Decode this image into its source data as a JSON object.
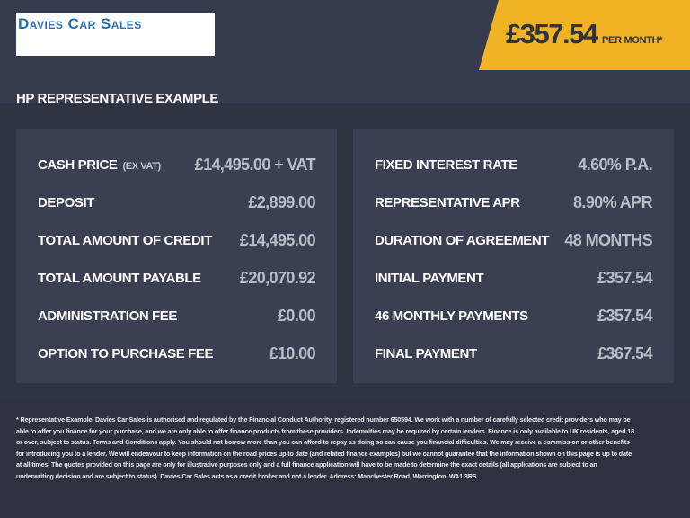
{
  "header": {
    "logo_text": "Davies Car Sales",
    "price": "£357.54",
    "per_month": "PER MONTH*",
    "accent_color": "#f0b323"
  },
  "section_title": "HP REPRESENTATIVE EXAMPLE",
  "left_panel": [
    {
      "label": "CASH PRICE",
      "sub": "(EX VAT)",
      "value": "£14,495.00 + VAT"
    },
    {
      "label": "DEPOSIT",
      "value": "£2,899.00"
    },
    {
      "label": "TOTAL AMOUNT OF CREDIT",
      "value": "£14,495.00"
    },
    {
      "label": "TOTAL AMOUNT PAYABLE",
      "value": "£20,070.92"
    },
    {
      "label": "ADMINISTRATION FEE",
      "value": "£0.00"
    },
    {
      "label": "OPTION TO PURCHASE FEE",
      "value": "£10.00"
    }
  ],
  "right_panel": [
    {
      "label": "FIXED INTEREST RATE",
      "value": "4.60% P.A."
    },
    {
      "label": "REPRESENTATIVE APR",
      "value": "8.90% APR"
    },
    {
      "label": "DURATION OF AGREEMENT",
      "value": "48 MONTHS"
    },
    {
      "label": "INITIAL PAYMENT",
      "value": "£357.54"
    },
    {
      "label": "46 MONTHLY PAYMENTS",
      "value": "£357.54"
    },
    {
      "label": "FINAL PAYMENT",
      "value": "£367.54"
    }
  ],
  "footer": {
    "disclaimer": "* Representative Example. Davies Car Sales  is authorised and regulated by the Financial Conduct Authority, registered number 650594. We work with a number of carefully selected credit providers who may be able to offer you finance for your purchase, and we are only able to offer finance products from these providers. Indemnities may be required by certain lenders. Finance is only available to UK residents, aged 18 or over, subject to status. Terms and Conditions apply. You should not borrow more than you can afford to repay as doing so can cause you financial difficulties. We may receive a commission or other benefits for introducing you to a lender. We will endeavour to keep information on the road prices up to date (and related finance examples) but we cannot guarantee that the information shown on this page is up to date at all times. The quotes provided on this page are only for illustrative purposes only and a full finance application will have to be made to determine the exact details (all applications are subject to an underwriting decision and are subject to status). Davies Car Sales  acts as a credit broker and not a lender. Address: Manchester Road, Warrington, WA1 3RS"
  }
}
